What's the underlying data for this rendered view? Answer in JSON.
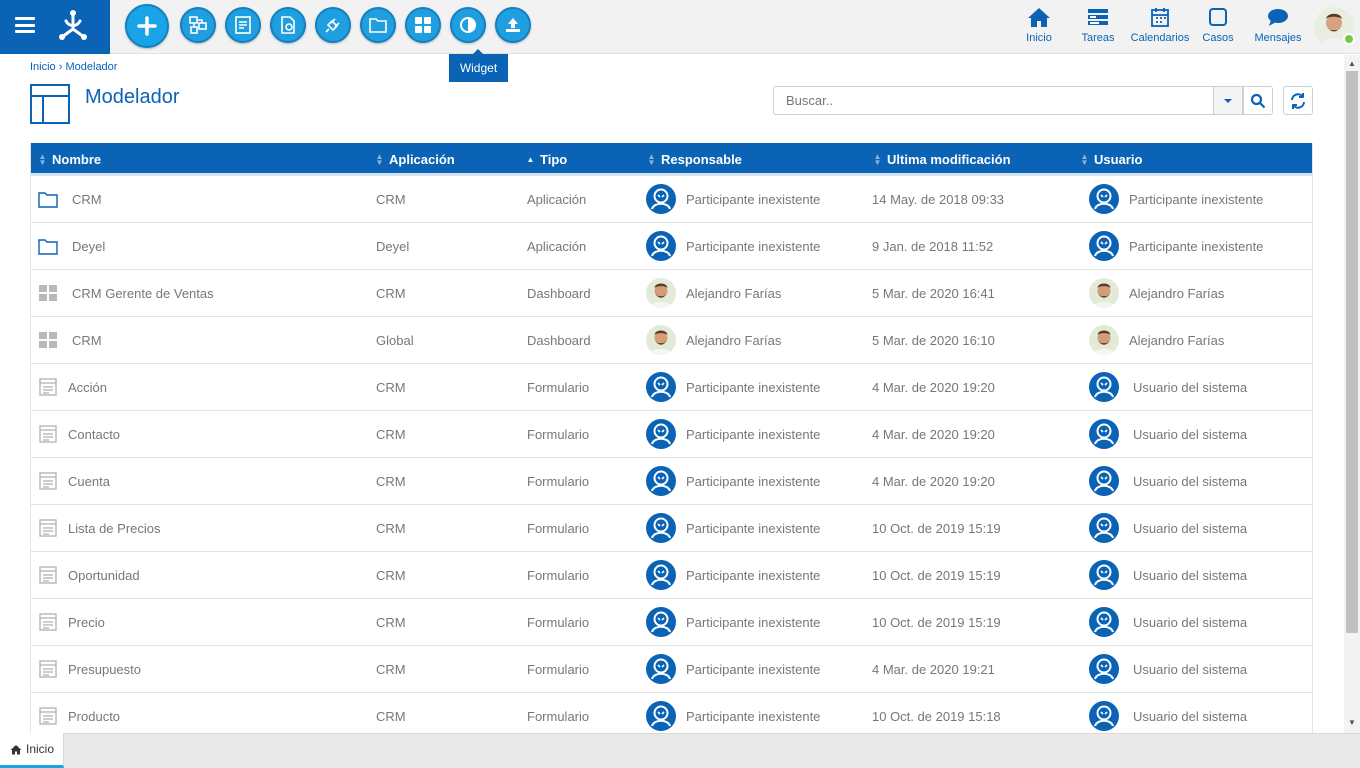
{
  "toolbar": {
    "buttons": [
      "add",
      "relations",
      "forms",
      "rules",
      "connections",
      "folders",
      "dashboards",
      "widget",
      "upload"
    ],
    "tooltip": "Widget"
  },
  "nav": {
    "inicio": "Inicio",
    "tareas": "Tareas",
    "calendarios": "Calendarios",
    "casos": "Casos",
    "mensajes": "Mensajes"
  },
  "breadcrumb": {
    "home": "Inicio",
    "separator": "›",
    "current": "Modelador"
  },
  "page": {
    "title": "Modelador"
  },
  "search": {
    "placeholder": "Buscar.."
  },
  "table": {
    "headers": [
      "Nombre",
      "Aplicación",
      "Tipo",
      "Responsable",
      "Ultima modificación",
      "Usuario"
    ],
    "rows": [
      {
        "icon": "folder",
        "nombre": "CRM",
        "aplicacion": "CRM",
        "tipo": "Aplicación",
        "responsable": "Participante inexistente",
        "resp_avatar": "generic",
        "modificacion": "14 May. de 2018 09:33",
        "usuario": "Participante inexistente",
        "user_avatar": "generic"
      },
      {
        "icon": "folder",
        "nombre": "Deyel",
        "aplicacion": "Deyel",
        "tipo": "Aplicación",
        "responsable": "Participante inexistente",
        "resp_avatar": "generic",
        "modificacion": "9 Jan. de 2018 11:52",
        "usuario": "Participante inexistente",
        "user_avatar": "generic"
      },
      {
        "icon": "dashboard",
        "nombre": "CRM Gerente de Ventas",
        "aplicacion": "CRM",
        "tipo": "Dashboard",
        "responsable": "Alejandro Farías",
        "resp_avatar": "photo",
        "modificacion": "5 Mar. de 2020 16:41",
        "usuario": "Alejandro Farías",
        "user_avatar": "photo"
      },
      {
        "icon": "dashboard",
        "nombre": "CRM",
        "aplicacion": "Global",
        "tipo": "Dashboard",
        "responsable": "Alejandro Farías",
        "resp_avatar": "photo",
        "modificacion": "5 Mar. de 2020 16:10",
        "usuario": "Alejandro Farías",
        "user_avatar": "photo"
      },
      {
        "icon": "form",
        "nombre": "Acción",
        "aplicacion": "CRM",
        "tipo": "Formulario",
        "responsable": "Participante inexistente",
        "resp_avatar": "generic",
        "modificacion": "4 Mar. de 2020 19:20",
        "usuario": "Usuario del sistema",
        "user_avatar": "generic"
      },
      {
        "icon": "form",
        "nombre": "Contacto",
        "aplicacion": "CRM",
        "tipo": "Formulario",
        "responsable": "Participante inexistente",
        "resp_avatar": "generic",
        "modificacion": "4 Mar. de 2020 19:20",
        "usuario": "Usuario del sistema",
        "user_avatar": "generic"
      },
      {
        "icon": "form",
        "nombre": "Cuenta",
        "aplicacion": "CRM",
        "tipo": "Formulario",
        "responsable": "Participante inexistente",
        "resp_avatar": "generic",
        "modificacion": "4 Mar. de 2020 19:20",
        "usuario": "Usuario del sistema",
        "user_avatar": "generic"
      },
      {
        "icon": "form",
        "nombre": "Lista de Precios",
        "aplicacion": "CRM",
        "tipo": "Formulario",
        "responsable": "Participante inexistente",
        "resp_avatar": "generic",
        "modificacion": "10 Oct. de 2019 15:19",
        "usuario": "Usuario del sistema",
        "user_avatar": "generic"
      },
      {
        "icon": "form",
        "nombre": "Oportunidad",
        "aplicacion": "CRM",
        "tipo": "Formulario",
        "responsable": "Participante inexistente",
        "resp_avatar": "generic",
        "modificacion": "10 Oct. de 2019 15:19",
        "usuario": "Usuario del sistema",
        "user_avatar": "generic"
      },
      {
        "icon": "form",
        "nombre": "Precio",
        "aplicacion": "CRM",
        "tipo": "Formulario",
        "responsable": "Participante inexistente",
        "resp_avatar": "generic",
        "modificacion": "10 Oct. de 2019 15:19",
        "usuario": "Usuario del sistema",
        "user_avatar": "generic"
      },
      {
        "icon": "form",
        "nombre": "Presupuesto",
        "aplicacion": "CRM",
        "tipo": "Formulario",
        "responsable": "Participante inexistente",
        "resp_avatar": "generic",
        "modificacion": "4 Mar. de 2020 19:21",
        "usuario": "Usuario del sistema",
        "user_avatar": "generic"
      },
      {
        "icon": "form",
        "nombre": "Producto",
        "aplicacion": "CRM",
        "tipo": "Formulario",
        "responsable": "Participante inexistente",
        "resp_avatar": "generic",
        "modificacion": "10 Oct. de 2019 15:18",
        "usuario": "Usuario del sistema",
        "user_avatar": "generic"
      }
    ]
  },
  "bottom_tabs": [
    {
      "label": "Inicio",
      "active": true
    }
  ],
  "colors": {
    "brand": "#0a63b5",
    "accent": "#1aa4e8",
    "online": "#7ac943"
  }
}
